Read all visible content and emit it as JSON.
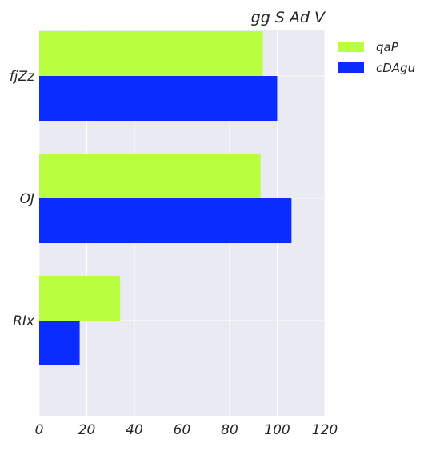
{
  "chart_data": {
    "type": "bar",
    "orientation": "horizontal",
    "title": "gg S Ad  V",
    "xlabel": "",
    "ylabel": "",
    "categories": [
      "fjZz",
      "OJ",
      "RIx"
    ],
    "series": [
      {
        "name": "qaP",
        "values": [
          94,
          93,
          34
        ],
        "color": "#b9ff3f"
      },
      {
        "name": "cDAgu",
        "values": [
          100,
          106,
          17
        ],
        "color": "#0a2cff"
      }
    ],
    "xlim": [
      0,
      120
    ],
    "xticks": [
      "0",
      "20",
      "40",
      "60",
      "80",
      "100",
      "120"
    ],
    "grid": true,
    "legend_position": "top-right",
    "background_color": "#eaeaf2"
  }
}
